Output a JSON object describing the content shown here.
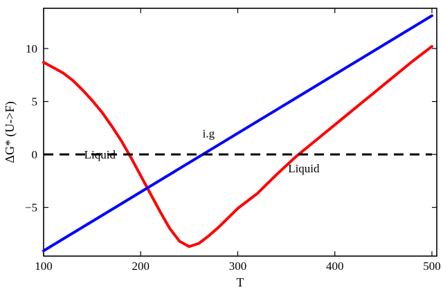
{
  "chart_data": {
    "type": "line",
    "title": "",
    "xlabel": "T",
    "ylabel": "ΔG* (U->F)",
    "xlim": [
      100,
      505
    ],
    "ylim": [
      -9.6,
      13.8
    ],
    "x_ticks": [
      100,
      200,
      300,
      400,
      500
    ],
    "y_ticks": [
      -5,
      0,
      5,
      10
    ],
    "x_tick_labels": [
      "100",
      "200",
      "300",
      "400",
      "500"
    ],
    "y_tick_labels": [
      "−5",
      "0",
      "5",
      "10"
    ],
    "grid": false,
    "series": [
      {
        "color": "#ff0000",
        "style": "solid",
        "x": [
          100,
          110,
          120,
          130,
          140,
          150,
          160,
          170,
          180,
          190,
          200,
          210,
          220,
          230,
          240,
          250,
          260,
          270,
          280,
          290,
          300,
          320,
          340,
          360,
          380,
          400,
          420,
          440,
          460,
          480,
          500
        ],
        "y": [
          8.7,
          8.2,
          7.7,
          7.0,
          6.1,
          5.1,
          4.0,
          2.7,
          1.3,
          -0.3,
          -2.0,
          -3.7,
          -5.4,
          -7.0,
          -8.2,
          -8.7,
          -8.4,
          -7.7,
          -6.9,
          -6.0,
          -5.1,
          -3.7,
          -1.9,
          -0.2,
          1.3,
          2.8,
          4.3,
          5.8,
          7.3,
          8.8,
          10.2
        ]
      },
      {
        "color": "#0000ff",
        "style": "solid",
        "x": [
          100,
          500
        ],
        "y": [
          -9.1,
          13.1
        ]
      },
      {
        "color": "#000000",
        "style": "dashed",
        "x": [
          100,
          500
        ],
        "y": [
          0,
          0
        ]
      }
    ],
    "annotations": [
      {
        "text": "Liquid",
        "x": 158,
        "y": 0.0
      },
      {
        "text": "i.g",
        "x": 270,
        "y": 2.0
      },
      {
        "text": "Liquid",
        "x": 368,
        "y": -1.3
      }
    ]
  }
}
